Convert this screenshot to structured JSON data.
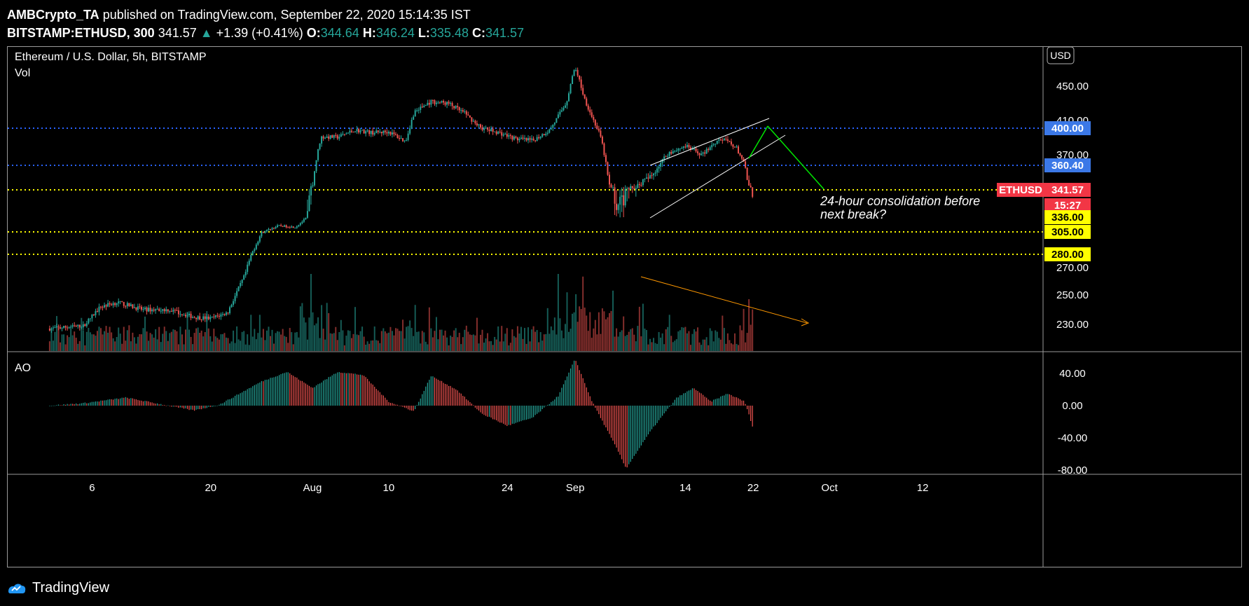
{
  "header": {
    "author": "AMBCrypto_TA",
    "published": "published on TradingView.com, September 22, 2020 15:14:35 IST",
    "symbol": "BITSTAMP:ETHUSD, 300",
    "last": "341.57",
    "change": "+1.39 (+0.41%)",
    "o_label": "O:",
    "o": "344.64",
    "h_label": "H:",
    "h": "346.24",
    "l_label": "L:",
    "l": "335.48",
    "c_label": "C:",
    "c": "341.57"
  },
  "pane": {
    "title": "Ethereum / U.S. Dollar, 5h, BITSTAMP",
    "vol_label": "Vol",
    "ao_label": "AO",
    "currency": "USD"
  },
  "footer": {
    "brand": "TradingView"
  },
  "chart_data": [
    {
      "type": "candlestick",
      "title": "Ethereum / U.S. Dollar, 5h, BITSTAMP",
      "x_ticks": [
        "6",
        "20",
        "Aug",
        "10",
        "24",
        "Sep",
        "14",
        "22",
        "Oct",
        "12"
      ],
      "x_tick_dates": [
        "2020-07-06",
        "2020-07-20",
        "2020-08-01",
        "2020-08-10",
        "2020-08-24",
        "2020-09-01",
        "2020-09-14",
        "2020-09-22",
        "2020-10-01",
        "2020-10-12"
      ],
      "x_range": [
        "2020-07-01",
        "2020-10-20"
      ],
      "y_ticks": [
        230,
        250,
        270,
        370,
        410,
        450
      ],
      "y_range": [
        208,
        500
      ],
      "scale": "log",
      "price_path": [
        [
          "2020-07-01",
          227
        ],
        [
          "2020-07-05",
          229
        ],
        [
          "2020-07-07",
          242
        ],
        [
          "2020-07-09",
          245
        ],
        [
          "2020-07-12",
          240
        ],
        [
          "2020-07-15",
          240
        ],
        [
          "2020-07-18",
          235
        ],
        [
          "2020-07-20",
          234
        ],
        [
          "2020-07-22",
          238
        ],
        [
          "2020-07-24",
          264
        ],
        [
          "2020-07-26",
          304
        ],
        [
          "2020-07-28",
          318
        ],
        [
          "2020-07-30",
          315
        ],
        [
          "2020-08-01",
          345
        ],
        [
          "2020-08-02",
          390
        ],
        [
          "2020-08-04",
          390
        ],
        [
          "2020-08-06",
          398
        ],
        [
          "2020-08-08",
          395
        ],
        [
          "2020-08-10",
          396
        ],
        [
          "2020-08-12",
          385
        ],
        [
          "2020-08-13",
          420
        ],
        [
          "2020-08-15",
          432
        ],
        [
          "2020-08-17",
          430
        ],
        [
          "2020-08-19",
          418
        ],
        [
          "2020-08-21",
          400
        ],
        [
          "2020-08-23",
          395
        ],
        [
          "2020-08-25",
          388
        ],
        [
          "2020-08-27",
          386
        ],
        [
          "2020-08-29",
          398
        ],
        [
          "2020-08-31",
          432
        ],
        [
          "2020-09-01",
          478
        ],
        [
          "2020-09-02",
          438
        ],
        [
          "2020-09-04",
          390
        ],
        [
          "2020-09-05",
          345
        ],
        [
          "2020-09-06",
          338
        ],
        [
          "2020-09-08",
          344
        ],
        [
          "2020-09-10",
          352
        ],
        [
          "2020-09-12",
          372
        ],
        [
          "2020-09-14",
          380
        ],
        [
          "2020-09-16",
          370
        ],
        [
          "2020-09-17",
          380
        ],
        [
          "2020-09-18",
          388
        ],
        [
          "2020-09-19",
          385
        ],
        [
          "2020-09-20",
          378
        ],
        [
          "2020-09-21",
          360
        ],
        [
          "2020-09-21T12",
          343
        ],
        [
          "2020-09-22",
          341.57
        ]
      ],
      "horizontal_levels": [
        {
          "value": 400.0,
          "label": "400.00",
          "color": "#2962ff",
          "label_bg": "#3b78e7"
        },
        {
          "value": 360.4,
          "label": "360.40",
          "color": "#2962ff",
          "label_bg": "#3b78e7"
        },
        {
          "value": 341.57,
          "label": "341.57",
          "color": "#ffff00",
          "label_bg": "#f23645"
        },
        {
          "value": 305.0,
          "label": "305.00",
          "color": "#ffff00",
          "label_bg": "#ffff00"
        },
        {
          "value": 280.0,
          "label": "280.00",
          "color": "#ffff00",
          "label_bg": "#ffff00"
        }
      ],
      "extra_price_labels": [
        {
          "text": "ETHUSD",
          "bg": "#f23645"
        },
        {
          "text": "15:27",
          "bg": "#f23645"
        },
        {
          "text": "336.00",
          "bg": "#ffff00"
        }
      ],
      "annotation": [
        "24-hour consolidation before",
        "next break?"
      ],
      "up_color": "#26a69a",
      "down_color": "#ef5350"
    },
    {
      "type": "bar",
      "title": "Vol",
      "colors": {
        "up": "#26a69a",
        "down": "#ef5350"
      }
    },
    {
      "type": "bar",
      "title": "AO",
      "y_ticks": [
        40,
        0,
        -40,
        -80
      ],
      "y_tick_labels": [
        "40.00",
        "0.00",
        "-40.00",
        "-80.00"
      ],
      "y_range": [
        -90,
        62
      ],
      "ao_path": [
        [
          "2020-07-01",
          0
        ],
        [
          "2020-07-05",
          3
        ],
        [
          "2020-07-10",
          10
        ],
        [
          "2020-07-13",
          4
        ],
        [
          "2020-07-18",
          -6
        ],
        [
          "2020-07-21",
          1
        ],
        [
          "2020-07-26",
          30
        ],
        [
          "2020-07-29",
          42
        ],
        [
          "2020-08-01",
          22
        ],
        [
          "2020-08-04",
          42
        ],
        [
          "2020-08-07",
          38
        ],
        [
          "2020-08-10",
          5
        ],
        [
          "2020-08-13",
          -7
        ],
        [
          "2020-08-15",
          37
        ],
        [
          "2020-08-18",
          20
        ],
        [
          "2020-08-21",
          -10
        ],
        [
          "2020-08-24",
          -25
        ],
        [
          "2020-08-27",
          -15
        ],
        [
          "2020-08-30",
          12
        ],
        [
          "2020-09-01",
          58
        ],
        [
          "2020-09-03",
          5
        ],
        [
          "2020-09-06",
          -55
        ],
        [
          "2020-09-07",
          -78
        ],
        [
          "2020-09-10",
          -30
        ],
        [
          "2020-09-13",
          10
        ],
        [
          "2020-09-15",
          22
        ],
        [
          "2020-09-17",
          5
        ],
        [
          "2020-09-19",
          15
        ],
        [
          "2020-09-21",
          5
        ],
        [
          "2020-09-22",
          -28
        ]
      ],
      "colors": {
        "up": "#26a69a",
        "down": "#ef5350"
      }
    }
  ]
}
